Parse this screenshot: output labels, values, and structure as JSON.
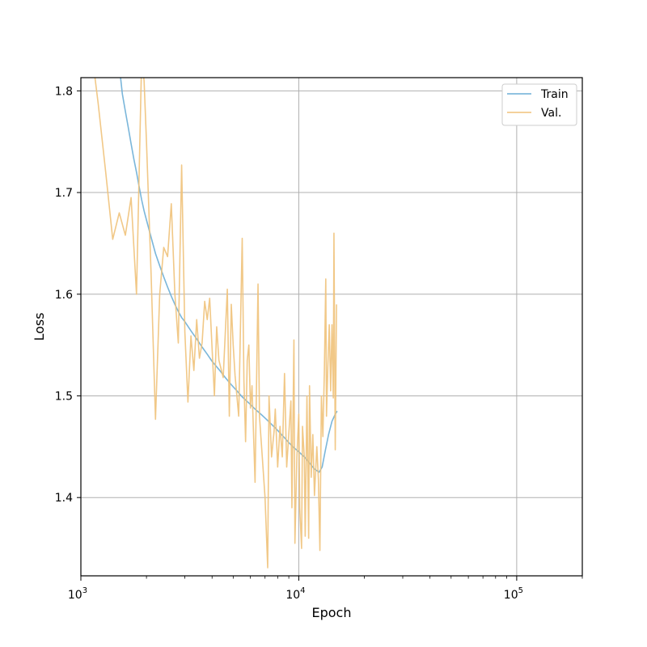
{
  "chart_data": {
    "type": "line",
    "xscale": "log",
    "xlim": [
      1000,
      200000
    ],
    "ylim": [
      1.323,
      1.813
    ],
    "xlabel": "Epoch",
    "ylabel": "Loss",
    "title": "",
    "grid": true,
    "legend_position": "top-right",
    "x_major_ticks": [
      {
        "value": 1000,
        "label": "10",
        "exp": "3"
      },
      {
        "value": 10000,
        "label": "10",
        "exp": "4"
      },
      {
        "value": 100000,
        "label": "10",
        "exp": "5"
      }
    ],
    "x_minor_ticks": [
      2000,
      3000,
      4000,
      5000,
      6000,
      7000,
      8000,
      9000,
      20000,
      30000,
      40000,
      50000,
      60000,
      70000,
      80000,
      90000,
      200000
    ],
    "y_ticks": [
      {
        "value": 1.4,
        "label": "1.4"
      },
      {
        "value": 1.5,
        "label": "1.5"
      },
      {
        "value": 1.6,
        "label": "1.6"
      },
      {
        "value": 1.7,
        "label": "1.7"
      },
      {
        "value": 1.8,
        "label": "1.8"
      }
    ],
    "series": [
      {
        "name": "Train",
        "color": "#6baed6",
        "points": [
          [
            1500,
            1.825
          ],
          [
            1550,
            1.797
          ],
          [
            1600,
            1.78
          ],
          [
            1650,
            1.764
          ],
          [
            1700,
            1.748
          ],
          [
            1750,
            1.733
          ],
          [
            1800,
            1.72
          ],
          [
            1850,
            1.706
          ],
          [
            1900,
            1.693
          ],
          [
            1950,
            1.682
          ],
          [
            2000,
            1.673
          ],
          [
            2100,
            1.656
          ],
          [
            2200,
            1.64
          ],
          [
            2300,
            1.628
          ],
          [
            2400,
            1.617
          ],
          [
            2500,
            1.607
          ],
          [
            2600,
            1.598
          ],
          [
            2700,
            1.59
          ],
          [
            2800,
            1.583
          ],
          [
            2900,
            1.577
          ],
          [
            3000,
            1.573
          ],
          [
            3200,
            1.564
          ],
          [
            3400,
            1.556
          ],
          [
            3600,
            1.548
          ],
          [
            3800,
            1.541
          ],
          [
            4000,
            1.534
          ],
          [
            4300,
            1.526
          ],
          [
            4600,
            1.518
          ],
          [
            4900,
            1.511
          ],
          [
            5200,
            1.505
          ],
          [
            5500,
            1.499
          ],
          [
            5900,
            1.493
          ],
          [
            6300,
            1.487
          ],
          [
            6700,
            1.482
          ],
          [
            7100,
            1.477
          ],
          [
            7500,
            1.472
          ],
          [
            8000,
            1.466
          ],
          [
            8500,
            1.46
          ],
          [
            9000,
            1.454
          ],
          [
            9500,
            1.449
          ],
          [
            10000,
            1.445
          ],
          [
            10600,
            1.44
          ],
          [
            11200,
            1.434
          ],
          [
            11800,
            1.428
          ],
          [
            12400,
            1.425
          ],
          [
            12800,
            1.43
          ],
          [
            13200,
            1.445
          ],
          [
            13700,
            1.462
          ],
          [
            14200,
            1.475
          ],
          [
            14700,
            1.482
          ],
          [
            15000,
            1.485
          ]
        ]
      },
      {
        "name": "Val.",
        "color": "#f0c27a",
        "points": [
          [
            1150,
            1.82
          ],
          [
            1200,
            1.788
          ],
          [
            1300,
            1.72
          ],
          [
            1400,
            1.654
          ],
          [
            1500,
            1.68
          ],
          [
            1600,
            1.658
          ],
          [
            1700,
            1.695
          ],
          [
            1800,
            1.6
          ],
          [
            1900,
            1.83
          ],
          [
            1950,
            1.81
          ],
          [
            2000,
            1.75
          ],
          [
            2100,
            1.62
          ],
          [
            2200,
            1.477
          ],
          [
            2300,
            1.6
          ],
          [
            2400,
            1.646
          ],
          [
            2500,
            1.637
          ],
          [
            2600,
            1.689
          ],
          [
            2700,
            1.6
          ],
          [
            2800,
            1.552
          ],
          [
            2900,
            1.727
          ],
          [
            3000,
            1.563
          ],
          [
            3100,
            1.494
          ],
          [
            3200,
            1.559
          ],
          [
            3300,
            1.525
          ],
          [
            3400,
            1.575
          ],
          [
            3500,
            1.537
          ],
          [
            3600,
            1.552
          ],
          [
            3700,
            1.593
          ],
          [
            3800,
            1.575
          ],
          [
            3900,
            1.596
          ],
          [
            4000,
            1.547
          ],
          [
            4100,
            1.5
          ],
          [
            4200,
            1.568
          ],
          [
            4300,
            1.535
          ],
          [
            4500,
            1.518
          ],
          [
            4700,
            1.605
          ],
          [
            4800,
            1.48
          ],
          [
            4900,
            1.59
          ],
          [
            5000,
            1.55
          ],
          [
            5100,
            1.52
          ],
          [
            5300,
            1.48
          ],
          [
            5500,
            1.655
          ],
          [
            5600,
            1.515
          ],
          [
            5700,
            1.455
          ],
          [
            5800,
            1.535
          ],
          [
            5900,
            1.55
          ],
          [
            6000,
            1.488
          ],
          [
            6100,
            1.51
          ],
          [
            6300,
            1.415
          ],
          [
            6500,
            1.61
          ],
          [
            6600,
            1.48
          ],
          [
            6800,
            1.44
          ],
          [
            7000,
            1.4
          ],
          [
            7200,
            1.331
          ],
          [
            7300,
            1.5
          ],
          [
            7500,
            1.44
          ],
          [
            7700,
            1.465
          ],
          [
            7800,
            1.487
          ],
          [
            8000,
            1.43
          ],
          [
            8200,
            1.47
          ],
          [
            8400,
            1.44
          ],
          [
            8600,
            1.522
          ],
          [
            8800,
            1.43
          ],
          [
            9000,
            1.463
          ],
          [
            9200,
            1.495
          ],
          [
            9300,
            1.39
          ],
          [
            9500,
            1.555
          ],
          [
            9600,
            1.355
          ],
          [
            9800,
            1.44
          ],
          [
            10000,
            1.482
          ],
          [
            10100,
            1.39
          ],
          [
            10300,
            1.35
          ],
          [
            10400,
            1.47
          ],
          [
            10600,
            1.44
          ],
          [
            10700,
            1.362
          ],
          [
            10900,
            1.5
          ],
          [
            11100,
            1.36
          ],
          [
            11200,
            1.51
          ],
          [
            11400,
            1.42
          ],
          [
            11600,
            1.462
          ],
          [
            11800,
            1.402
          ],
          [
            12100,
            1.45
          ],
          [
            12300,
            1.418
          ],
          [
            12500,
            1.348
          ],
          [
            12700,
            1.5
          ],
          [
            12900,
            1.46
          ],
          [
            13100,
            1.523
          ],
          [
            13300,
            1.615
          ],
          [
            13400,
            1.48
          ],
          [
            13600,
            1.53
          ],
          [
            13800,
            1.57
          ],
          [
            14000,
            1.505
          ],
          [
            14200,
            1.57
          ],
          [
            14400,
            1.498
          ],
          [
            14500,
            1.66
          ],
          [
            14700,
            1.447
          ],
          [
            14900,
            1.59
          ]
        ]
      }
    ]
  }
}
